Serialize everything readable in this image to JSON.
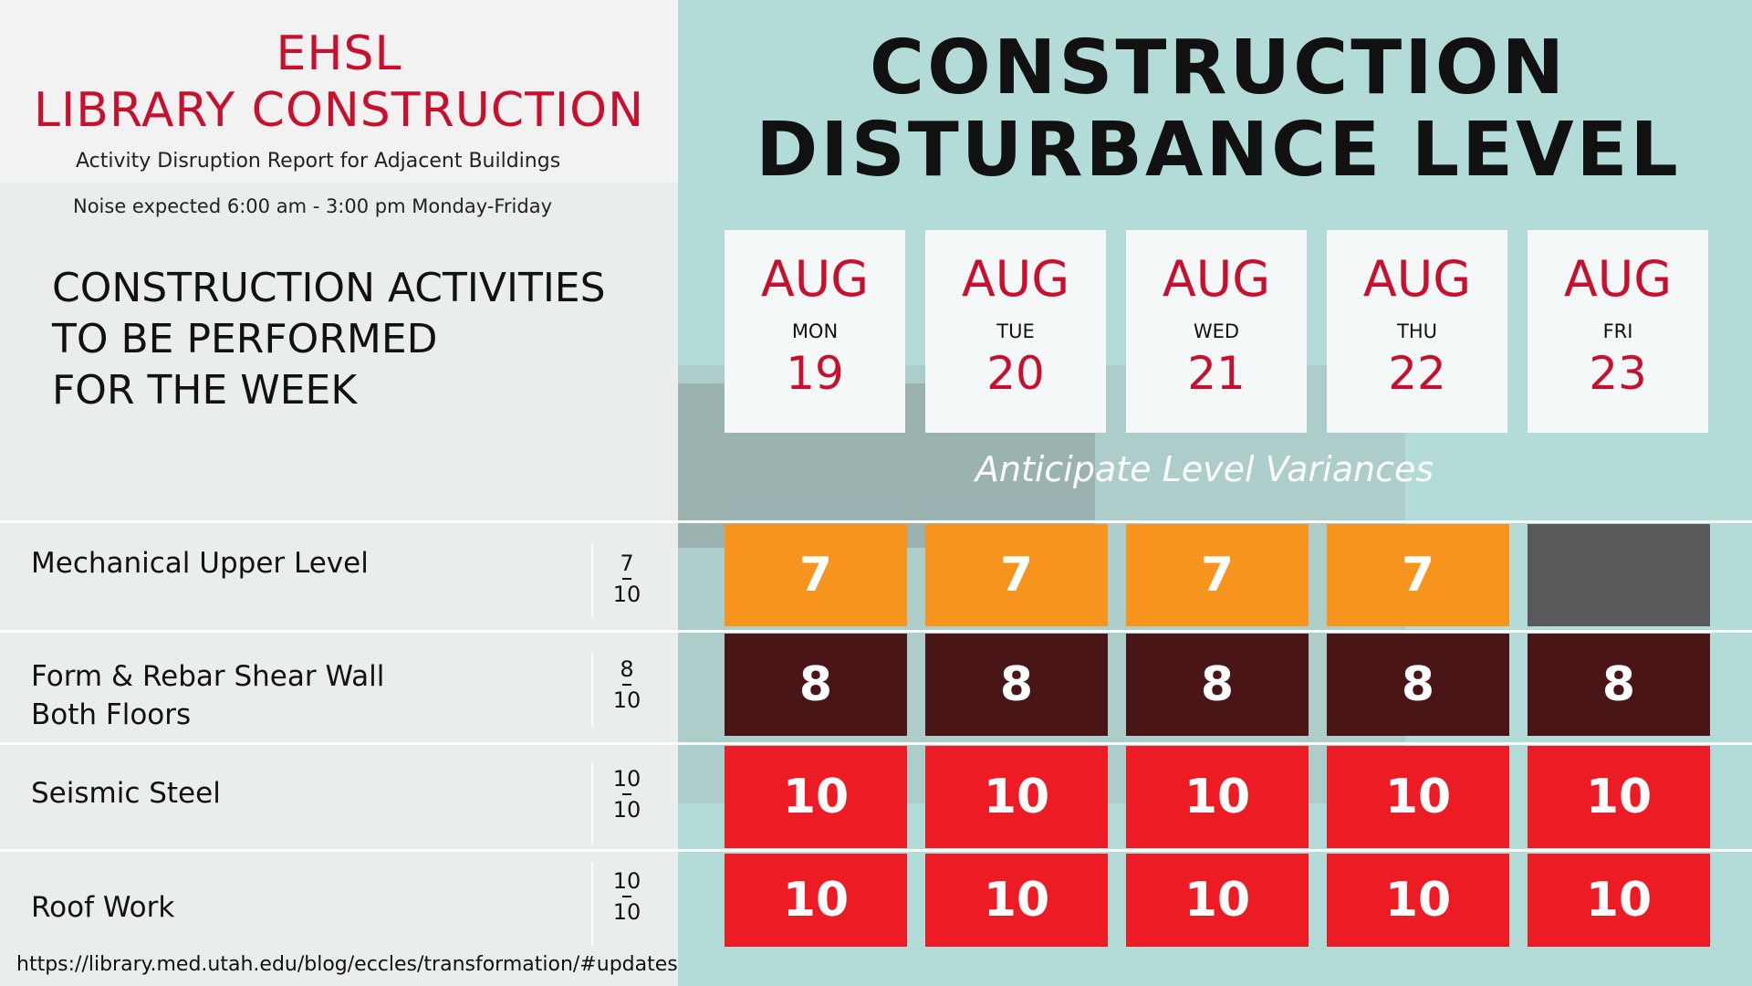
{
  "header": {
    "org_line1": "EHSL",
    "org_line2": "LIBRARY CONSTRUCTION",
    "subtitle": "Activity Disruption Report for Adjacent Buildings",
    "noise_note": "Noise expected 6:00 am - 3:00 pm Monday-Friday"
  },
  "activities_heading": {
    "line1": "CONSTRUCTION ACTIVITIES",
    "line2": "TO BE PERFORMED",
    "line3": "FOR THE WEEK"
  },
  "panel": {
    "title_line1": "CONSTRUCTION",
    "title_line2": "DISTURBANCE LEVEL",
    "note": "Anticipate Level Variances"
  },
  "days": [
    {
      "month": "AUG",
      "dow": "MON",
      "day": "19"
    },
    {
      "month": "AUG",
      "dow": "TUE",
      "day": "20"
    },
    {
      "month": "AUG",
      "dow": "WED",
      "day": "21"
    },
    {
      "month": "AUG",
      "dow": "THU",
      "day": "22"
    },
    {
      "month": "AUG",
      "dow": "FRI",
      "day": "23"
    }
  ],
  "activities": [
    {
      "name_line1": "Mechanical Upper Level",
      "name_line2": "",
      "level": "7",
      "max": "10",
      "cells": [
        "7",
        "7",
        "7",
        "7",
        ""
      ],
      "colors": [
        "#f7941d",
        "#f7941d",
        "#f7941d",
        "#f7941d",
        "#58595b"
      ]
    },
    {
      "name_line1": "Form & Rebar Shear Wall",
      "name_line2": "Both Floors",
      "level": "8",
      "max": "10",
      "cells": [
        "8",
        "8",
        "8",
        "8",
        "8"
      ],
      "colors": [
        "#4a1516",
        "#4a1516",
        "#4a1516",
        "#4a1516",
        "#4a1516"
      ]
    },
    {
      "name_line1": "Seismic Steel",
      "name_line2": "",
      "level": "10",
      "max": "10",
      "cells": [
        "10",
        "10",
        "10",
        "10",
        "10"
      ],
      "colors": [
        "#ed1c24",
        "#ed1c24",
        "#ed1c24",
        "#ed1c24",
        "#ed1c24"
      ]
    },
    {
      "name_line1": "Roof Work",
      "name_line2": "",
      "level": "10",
      "max": "10",
      "cells": [
        "10",
        "10",
        "10",
        "10",
        "10"
      ],
      "colors": [
        "#ed1c24",
        "#ed1c24",
        "#ed1c24",
        "#ed1c24",
        "#ed1c24"
      ]
    }
  ],
  "footer": {
    "url": "https://library.med.utah.edu/blog/eccles/transformation/#updates"
  }
}
